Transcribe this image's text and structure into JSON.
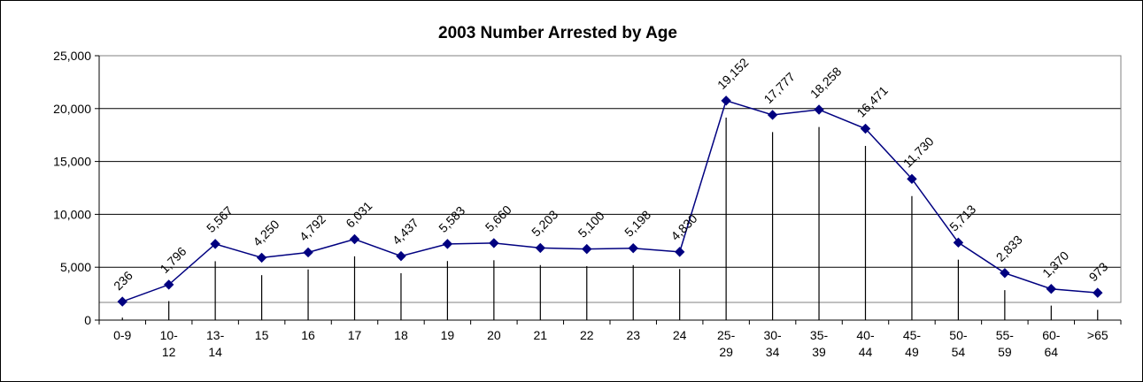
{
  "chart_data": {
    "type": "line",
    "title": "2003 Number Arrested by Age",
    "xlabel": "",
    "ylabel": "",
    "ylim": [
      0,
      25000
    ],
    "yticks": [
      "0",
      "5,000",
      "10,000",
      "15,000",
      "20,000",
      "25,000"
    ],
    "ytick_values": [
      0,
      5000,
      10000,
      15000,
      20000,
      25000
    ],
    "grid": true,
    "legend": "none",
    "categories": [
      [
        "0-9"
      ],
      [
        "10-",
        "12"
      ],
      [
        "13-",
        "14"
      ],
      [
        "15"
      ],
      [
        "16"
      ],
      [
        "17"
      ],
      [
        "18"
      ],
      [
        "19"
      ],
      [
        "20"
      ],
      [
        "21"
      ],
      [
        "22"
      ],
      [
        "23"
      ],
      [
        "24"
      ],
      [
        "25-",
        "29"
      ],
      [
        "30-",
        "34"
      ],
      [
        "35-",
        "39"
      ],
      [
        "40-",
        "44"
      ],
      [
        "45-",
        "49"
      ],
      [
        "50-",
        "54"
      ],
      [
        "55-",
        "59"
      ],
      [
        "60-",
        "64"
      ],
      [
        ">65"
      ]
    ],
    "bar_values": [
      236,
      1796,
      5567,
      4250,
      4792,
      6031,
      4437,
      5583,
      5660,
      5203,
      5100,
      5198,
      4830,
      19152,
      17777,
      18258,
      16471,
      11730,
      5713,
      2833,
      1370,
      973
    ],
    "data_labels": [
      "236",
      "1,796",
      "5,567",
      "4,250",
      "4,792",
      "6,031",
      "4,437",
      "5,583",
      "5,660",
      "5,203",
      "5,100",
      "5,198",
      "4,830",
      "19,152",
      "17,777",
      "18,258",
      "16,471",
      "11,730",
      "5,713",
      "2,833",
      "1,370",
      "973"
    ],
    "line_values": [
      1750,
      3350,
      7200,
      5900,
      6400,
      7650,
      6050,
      7200,
      7280,
      6820,
      6720,
      6800,
      6450,
      20750,
      19400,
      19900,
      18100,
      13350,
      7330,
      4450,
      2950,
      2580
    ],
    "colors": {
      "line": "#000080",
      "marker": "#000080",
      "bars": "#000000",
      "grid": "#000000",
      "plot_border": "#808080"
    }
  }
}
